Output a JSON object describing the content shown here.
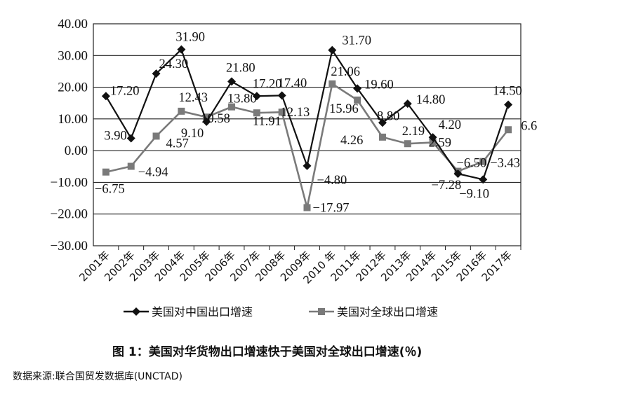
{
  "chart_data": {
    "type": "line",
    "title": "",
    "xlabel": "",
    "ylabel": "",
    "ylim": [
      -30,
      40
    ],
    "y_ticks": [
      "40.00",
      "30.00",
      "20.00",
      "10.00",
      "0.00",
      "-10.00",
      "-20.00",
      "-30.00"
    ],
    "y_tick_values": [
      40,
      30,
      20,
      10,
      0,
      -10,
      -20,
      -30
    ],
    "grid": "horizontal",
    "legend_position": "bottom",
    "categories": [
      "2001年",
      "2002年",
      "2003年",
      "2004年",
      "2005年",
      "2006年",
      "2007年",
      "2008年",
      "2009年",
      "2010 年",
      "2011年",
      "2012年",
      "2013年",
      "2014年",
      "2015年",
      "2016年",
      "2017年"
    ],
    "series": [
      {
        "name": "美国对中国出口增速",
        "color": "#111111",
        "marker": "diamond",
        "values": [
          17.2,
          3.9,
          24.3,
          31.9,
          9.1,
          21.8,
          17.2,
          17.4,
          -4.8,
          31.7,
          19.6,
          8.8,
          14.8,
          4.2,
          -7.28,
          -9.1,
          14.5
        ],
        "labels": [
          "17.20",
          "3.90",
          "24.30",
          "31.90",
          "9.10",
          "21.80",
          "17.20",
          "17.40",
          "-4.80",
          "31.70",
          "19.60",
          "8.80",
          "14.80",
          "4.20",
          "-7.28",
          "-9.10",
          "14.50"
        ]
      },
      {
        "name": "美国对全球出口增速",
        "color": "#7a7a7a",
        "marker": "square",
        "values": [
          -6.75,
          -4.94,
          4.57,
          12.43,
          10.58,
          13.8,
          11.91,
          12.13,
          -17.97,
          21.06,
          15.96,
          4.26,
          2.19,
          2.59,
          -6.5,
          -3.43,
          6.6
        ],
        "labels": [
          "-6.75",
          "-4.94",
          "4.57",
          "12.43",
          "10.58",
          "13.80",
          "11.91",
          "12.13",
          "-17.97",
          "21.06",
          "15.96",
          "4.26",
          "2.19",
          "2.59",
          "-6.50",
          "-3.43",
          "6.6"
        ]
      }
    ]
  },
  "caption": "图 1：美国对华货物出口增速快于美国对全球出口增速(％)",
  "source": "数据来源:联合国贸发数据库(UNCTAD)"
}
